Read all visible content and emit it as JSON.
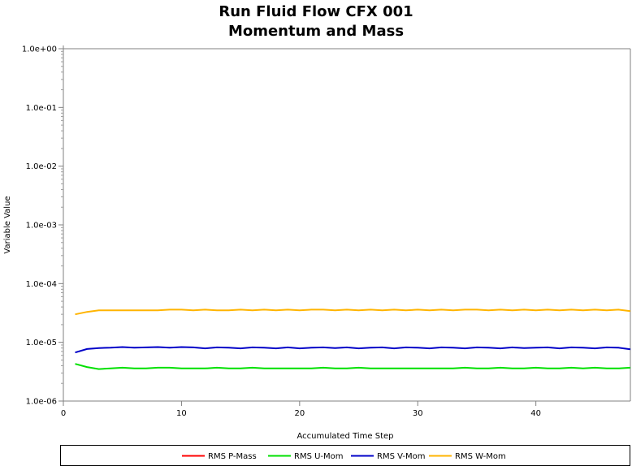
{
  "chart_data": {
    "type": "line",
    "title": [
      "Run Fluid Flow CFX 001",
      "Momentum and Mass"
    ],
    "xlabel": "Accumulated Time Step",
    "ylabel": "Variable Value",
    "xlim": [
      0,
      48
    ],
    "ylim": [
      1e-06,
      1
    ],
    "yscale": "log",
    "x_ticks": [
      0,
      10,
      20,
      30,
      40
    ],
    "y_ticks": [
      1,
      0.1,
      0.01,
      0.001,
      0.0001,
      1e-05,
      1e-06
    ],
    "y_tick_labels": [
      "1.0e+00",
      "1.0e-01",
      "1.0e-02",
      "1.0e-03",
      "1.0e-04",
      "1.0e-05",
      "1.0e-06"
    ],
    "grid": true,
    "legend_position": "bottom",
    "series": [
      {
        "name": "RMS P-Mass",
        "color": "#ff0000",
        "x": [],
        "y": []
      },
      {
        "name": "RMS U-Mom",
        "color": "#00e000",
        "x": [
          1,
          2,
          3,
          4,
          5,
          6,
          7,
          8,
          9,
          10,
          11,
          12,
          13,
          14,
          15,
          16,
          17,
          18,
          19,
          20,
          21,
          22,
          23,
          24,
          25,
          26,
          27,
          28,
          29,
          30,
          31,
          32,
          33,
          34,
          35,
          36,
          37,
          38,
          39,
          40,
          41,
          42,
          43,
          44,
          45,
          46,
          47,
          48
        ],
        "y": [
          4.3e-06,
          3.8e-06,
          3.5e-06,
          3.6e-06,
          3.7e-06,
          3.6e-06,
          3.6e-06,
          3.7e-06,
          3.7e-06,
          3.6e-06,
          3.6e-06,
          3.6e-06,
          3.7e-06,
          3.6e-06,
          3.6e-06,
          3.7e-06,
          3.6e-06,
          3.6e-06,
          3.6e-06,
          3.6e-06,
          3.6e-06,
          3.7e-06,
          3.6e-06,
          3.6e-06,
          3.7e-06,
          3.6e-06,
          3.6e-06,
          3.6e-06,
          3.6e-06,
          3.6e-06,
          3.6e-06,
          3.6e-06,
          3.6e-06,
          3.7e-06,
          3.6e-06,
          3.6e-06,
          3.7e-06,
          3.6e-06,
          3.6e-06,
          3.7e-06,
          3.6e-06,
          3.6e-06,
          3.7e-06,
          3.6e-06,
          3.7e-06,
          3.6e-06,
          3.6e-06,
          3.7e-06
        ]
      },
      {
        "name": "RMS V-Mom",
        "color": "#0000c8",
        "x": [
          1,
          2,
          3,
          4,
          5,
          6,
          7,
          8,
          9,
          10,
          11,
          12,
          13,
          14,
          15,
          16,
          17,
          18,
          19,
          20,
          21,
          22,
          23,
          24,
          25,
          26,
          27,
          28,
          29,
          30,
          31,
          32,
          33,
          34,
          35,
          36,
          37,
          38,
          39,
          40,
          41,
          42,
          43,
          44,
          45,
          46,
          47,
          48
        ],
        "y": [
          6.7e-06,
          7.7e-06,
          8e-06,
          8.1e-06,
          8.3e-06,
          8.1e-06,
          8.2e-06,
          8.3e-06,
          8.1e-06,
          8.3e-06,
          8.2e-06,
          7.9e-06,
          8.2e-06,
          8.1e-06,
          7.9e-06,
          8.2e-06,
          8.1e-06,
          7.9e-06,
          8.2e-06,
          7.9e-06,
          8.1e-06,
          8.2e-06,
          8e-06,
          8.2e-06,
          7.9e-06,
          8.1e-06,
          8.2e-06,
          7.9e-06,
          8.2e-06,
          8.1e-06,
          7.9e-06,
          8.2e-06,
          8.1e-06,
          7.9e-06,
          8.2e-06,
          8.1e-06,
          7.9e-06,
          8.2e-06,
          8e-06,
          8.1e-06,
          8.2e-06,
          7.9e-06,
          8.2e-06,
          8.1e-06,
          7.9e-06,
          8.2e-06,
          8.1e-06,
          7.6e-06
        ]
      },
      {
        "name": "RMS W-Mom",
        "color": "#ffb400",
        "x": [
          1,
          2,
          3,
          4,
          5,
          6,
          7,
          8,
          9,
          10,
          11,
          12,
          13,
          14,
          15,
          16,
          17,
          18,
          19,
          20,
          21,
          22,
          23,
          24,
          25,
          26,
          27,
          28,
          29,
          30,
          31,
          32,
          33,
          34,
          35,
          36,
          37,
          38,
          39,
          40,
          41,
          42,
          43,
          44,
          45,
          46,
          47,
          48
        ],
        "y": [
          3e-05,
          3.3e-05,
          3.5e-05,
          3.5e-05,
          3.5e-05,
          3.5e-05,
          3.5e-05,
          3.5e-05,
          3.6e-05,
          3.6e-05,
          3.5e-05,
          3.6e-05,
          3.5e-05,
          3.5e-05,
          3.6e-05,
          3.5e-05,
          3.6e-05,
          3.5e-05,
          3.6e-05,
          3.5e-05,
          3.6e-05,
          3.6e-05,
          3.5e-05,
          3.6e-05,
          3.5e-05,
          3.6e-05,
          3.5e-05,
          3.6e-05,
          3.5e-05,
          3.6e-05,
          3.5e-05,
          3.6e-05,
          3.5e-05,
          3.6e-05,
          3.6e-05,
          3.5e-05,
          3.6e-05,
          3.5e-05,
          3.6e-05,
          3.5e-05,
          3.6e-05,
          3.5e-05,
          3.6e-05,
          3.5e-05,
          3.6e-05,
          3.5e-05,
          3.6e-05,
          3.4e-05
        ]
      }
    ]
  }
}
